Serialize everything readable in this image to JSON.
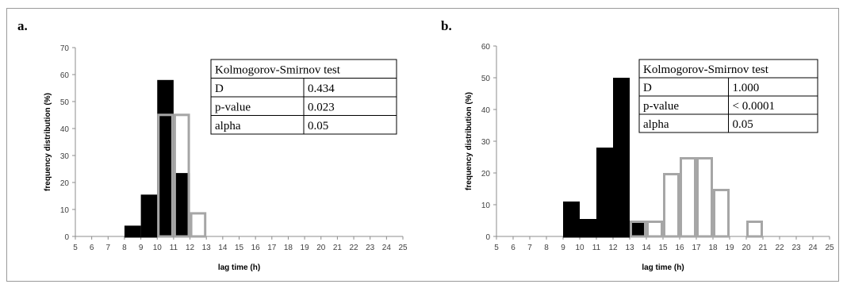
{
  "chart_data": [
    {
      "panel": "a.",
      "type": "bar",
      "xlabel": "lag time (h)",
      "ylabel": "frequency distribution (%)",
      "xlim": [
        5,
        25
      ],
      "ylim": [
        0,
        70
      ],
      "xticks": [
        5,
        6,
        7,
        8,
        9,
        10,
        11,
        12,
        13,
        14,
        15,
        16,
        17,
        18,
        19,
        20,
        21,
        22,
        23,
        24,
        25
      ],
      "yticks": [
        0,
        10,
        20,
        30,
        40,
        50,
        60,
        70
      ],
      "series": [
        {
          "fill": "#000000",
          "stroke": "#000000",
          "bins": [
            [
              8,
              9,
              4
            ],
            [
              9,
              10,
              15.5
            ],
            [
              10,
              11,
              58
            ],
            [
              11,
              12,
              23.5
            ]
          ]
        },
        {
          "fill": "none",
          "stroke": "#a6a6a6",
          "bins": [
            [
              10,
              11,
              45.5
            ],
            [
              11,
              12,
              45.5
            ],
            [
              12,
              13,
              9
            ]
          ]
        }
      ],
      "ks_table": {
        "title": "Kolmogorov-Smirnov test",
        "rows": [
          [
            "D",
            "0.434"
          ],
          [
            "p-value",
            "0.023"
          ],
          [
            "alpha",
            "0.05"
          ]
        ]
      }
    },
    {
      "panel": "b.",
      "type": "bar",
      "xlabel": "lag time (h)",
      "ylabel": "frequency distribution (%)",
      "xlim": [
        5,
        25
      ],
      "ylim": [
        0,
        60
      ],
      "xticks": [
        5,
        6,
        7,
        8,
        9,
        10,
        11,
        12,
        13,
        14,
        15,
        16,
        17,
        18,
        19,
        20,
        21,
        22,
        23,
        24,
        25
      ],
      "yticks": [
        0,
        10,
        20,
        30,
        40,
        50,
        60
      ],
      "series": [
        {
          "fill": "#000000",
          "stroke": "#000000",
          "bins": [
            [
              9,
              10,
              11
            ],
            [
              10,
              11,
              5.5
            ],
            [
              11,
              12,
              28
            ],
            [
              12,
              13,
              50
            ],
            [
              13,
              14,
              4.5
            ]
          ]
        },
        {
          "fill": "none",
          "stroke": "#a6a6a6",
          "bins": [
            [
              13,
              14,
              5
            ],
            [
              14,
              15,
              5
            ],
            [
              15,
              16,
              20
            ],
            [
              16,
              17,
              25
            ],
            [
              17,
              18,
              25
            ],
            [
              18,
              19,
              15
            ],
            [
              20,
              21,
              5
            ]
          ]
        }
      ],
      "ks_table": {
        "title": "Kolmogorov-Smirnov test",
        "rows": [
          [
            "D",
            "1.000"
          ],
          [
            "p-value",
            "< 0.0001"
          ],
          [
            "alpha",
            "0.05"
          ]
        ]
      }
    }
  ]
}
